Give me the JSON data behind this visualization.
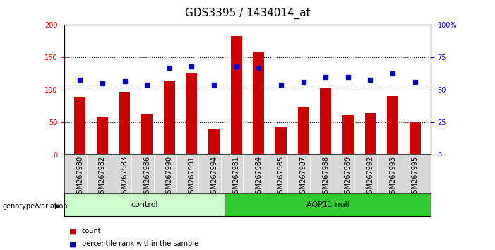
{
  "title": "GDS3395 / 1434014_at",
  "categories": [
    "GSM267980",
    "GSM267982",
    "GSM267983",
    "GSM267986",
    "GSM267990",
    "GSM267991",
    "GSM267994",
    "GSM267981",
    "GSM267984",
    "GSM267985",
    "GSM267987",
    "GSM267988",
    "GSM267989",
    "GSM267992",
    "GSM267993",
    "GSM267995"
  ],
  "bar_values": [
    90,
    58,
    97,
    62,
    113,
    125,
    40,
    183,
    158,
    43,
    73,
    103,
    61,
    65,
    91,
    50
  ],
  "dot_values": [
    58,
    55,
    57,
    54,
    67,
    68,
    54,
    68,
    67,
    54,
    56,
    60,
    60,
    58,
    63,
    56
  ],
  "control_count": 7,
  "control_label": "control",
  "aqp_label": "AQP11 null",
  "genotype_label": "genotype/variation",
  "legend_count": "count",
  "legend_percentile": "percentile rank within the sample",
  "ylim_left": [
    0,
    200
  ],
  "ylim_right": [
    0,
    100
  ],
  "yticks_left": [
    0,
    50,
    100,
    150,
    200
  ],
  "yticks_right": [
    0,
    25,
    50,
    75,
    100
  ],
  "ytick_labels_right": [
    "0",
    "25",
    "50",
    "75",
    "100%"
  ],
  "bar_color": "#cc0000",
  "dot_color": "#0000cc",
  "control_bg": "#ccffcc",
  "aqp_bg": "#33cc33",
  "plot_bg": "#ffffff",
  "tick_area_bg": "#d8d8d8",
  "title_fontsize": 11,
  "tick_fontsize": 7,
  "label_fontsize": 8
}
